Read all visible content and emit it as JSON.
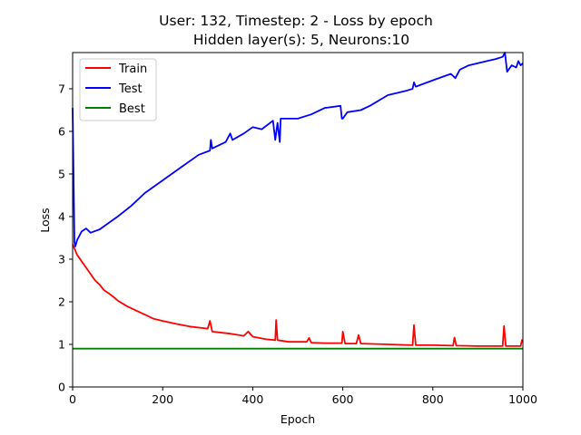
{
  "chart_data": {
    "type": "line",
    "title_line1": "User: 132, Timestep: 2 - Loss by epoch",
    "title_line2": "Hidden layer(s): 5, Neurons:10",
    "xlabel": "Epoch",
    "ylabel": "Loss",
    "xlim": [
      0,
      1000
    ],
    "ylim": [
      0,
      7.85
    ],
    "x_ticks": [
      0,
      200,
      400,
      600,
      800,
      1000
    ],
    "y_ticks": [
      0,
      1,
      2,
      3,
      4,
      5,
      6,
      7
    ],
    "grid": false,
    "legend_placement": "upper-left",
    "series": [
      {
        "name": "Train",
        "color": "#ff0000",
        "points": [
          [
            0,
            3.35
          ],
          [
            10,
            3.1
          ],
          [
            20,
            2.95
          ],
          [
            30,
            2.8
          ],
          [
            40,
            2.65
          ],
          [
            50,
            2.5
          ],
          [
            60,
            2.4
          ],
          [
            70,
            2.27
          ],
          [
            80,
            2.2
          ],
          [
            90,
            2.12
          ],
          [
            100,
            2.03
          ],
          [
            120,
            1.9
          ],
          [
            140,
            1.8
          ],
          [
            160,
            1.7
          ],
          [
            180,
            1.6
          ],
          [
            200,
            1.55
          ],
          [
            230,
            1.48
          ],
          [
            260,
            1.42
          ],
          [
            300,
            1.37
          ],
          [
            305,
            1.55
          ],
          [
            310,
            1.3
          ],
          [
            350,
            1.25
          ],
          [
            380,
            1.2
          ],
          [
            390,
            1.3
          ],
          [
            400,
            1.18
          ],
          [
            430,
            1.12
          ],
          [
            450,
            1.1
          ],
          [
            452,
            1.57
          ],
          [
            455,
            1.1
          ],
          [
            480,
            1.06
          ],
          [
            520,
            1.06
          ],
          [
            525,
            1.15
          ],
          [
            530,
            1.04
          ],
          [
            560,
            1.03
          ],
          [
            598,
            1.03
          ],
          [
            600,
            1.3
          ],
          [
            605,
            1.02
          ],
          [
            630,
            1.02
          ],
          [
            635,
            1.22
          ],
          [
            640,
            1.02
          ],
          [
            700,
            1.0
          ],
          [
            755,
            0.98
          ],
          [
            758,
            1.45
          ],
          [
            762,
            0.98
          ],
          [
            800,
            0.98
          ],
          [
            845,
            0.97
          ],
          [
            848,
            1.16
          ],
          [
            852,
            0.97
          ],
          [
            900,
            0.96
          ],
          [
            955,
            0.96
          ],
          [
            958,
            1.43
          ],
          [
            962,
            0.96
          ],
          [
            995,
            0.96
          ],
          [
            998,
            1.1
          ],
          [
            1000,
            1.05
          ]
        ]
      },
      {
        "name": "Test",
        "color": "#0000ff",
        "points": [
          [
            0,
            6.55
          ],
          [
            2,
            5.0
          ],
          [
            4,
            3.4
          ],
          [
            6,
            3.3
          ],
          [
            10,
            3.45
          ],
          [
            20,
            3.65
          ],
          [
            30,
            3.72
          ],
          [
            40,
            3.62
          ],
          [
            60,
            3.7
          ],
          [
            80,
            3.85
          ],
          [
            100,
            4.0
          ],
          [
            130,
            4.25
          ],
          [
            160,
            4.55
          ],
          [
            200,
            4.85
          ],
          [
            240,
            5.15
          ],
          [
            280,
            5.45
          ],
          [
            305,
            5.55
          ],
          [
            307,
            5.8
          ],
          [
            310,
            5.6
          ],
          [
            340,
            5.75
          ],
          [
            350,
            5.95
          ],
          [
            355,
            5.8
          ],
          [
            380,
            5.95
          ],
          [
            400,
            6.1
          ],
          [
            420,
            6.05
          ],
          [
            445,
            6.25
          ],
          [
            450,
            5.8
          ],
          [
            455,
            6.2
          ],
          [
            460,
            5.75
          ],
          [
            462,
            6.3
          ],
          [
            500,
            6.3
          ],
          [
            530,
            6.4
          ],
          [
            560,
            6.55
          ],
          [
            595,
            6.6
          ],
          [
            598,
            6.3
          ],
          [
            600,
            6.3
          ],
          [
            610,
            6.45
          ],
          [
            640,
            6.5
          ],
          [
            660,
            6.6
          ],
          [
            700,
            6.85
          ],
          [
            740,
            6.95
          ],
          [
            755,
            7.0
          ],
          [
            758,
            7.15
          ],
          [
            762,
            7.05
          ],
          [
            800,
            7.2
          ],
          [
            840,
            7.35
          ],
          [
            850,
            7.25
          ],
          [
            860,
            7.45
          ],
          [
            880,
            7.55
          ],
          [
            900,
            7.6
          ],
          [
            920,
            7.65
          ],
          [
            940,
            7.7
          ],
          [
            955,
            7.75
          ],
          [
            960,
            7.85
          ],
          [
            965,
            7.4
          ],
          [
            975,
            7.55
          ],
          [
            985,
            7.5
          ],
          [
            990,
            7.65
          ],
          [
            995,
            7.55
          ],
          [
            1000,
            7.6
          ]
        ]
      },
      {
        "name": "Best",
        "color": "#008000",
        "points": [
          [
            0,
            0.9
          ],
          [
            1000,
            0.9
          ]
        ]
      }
    ]
  }
}
